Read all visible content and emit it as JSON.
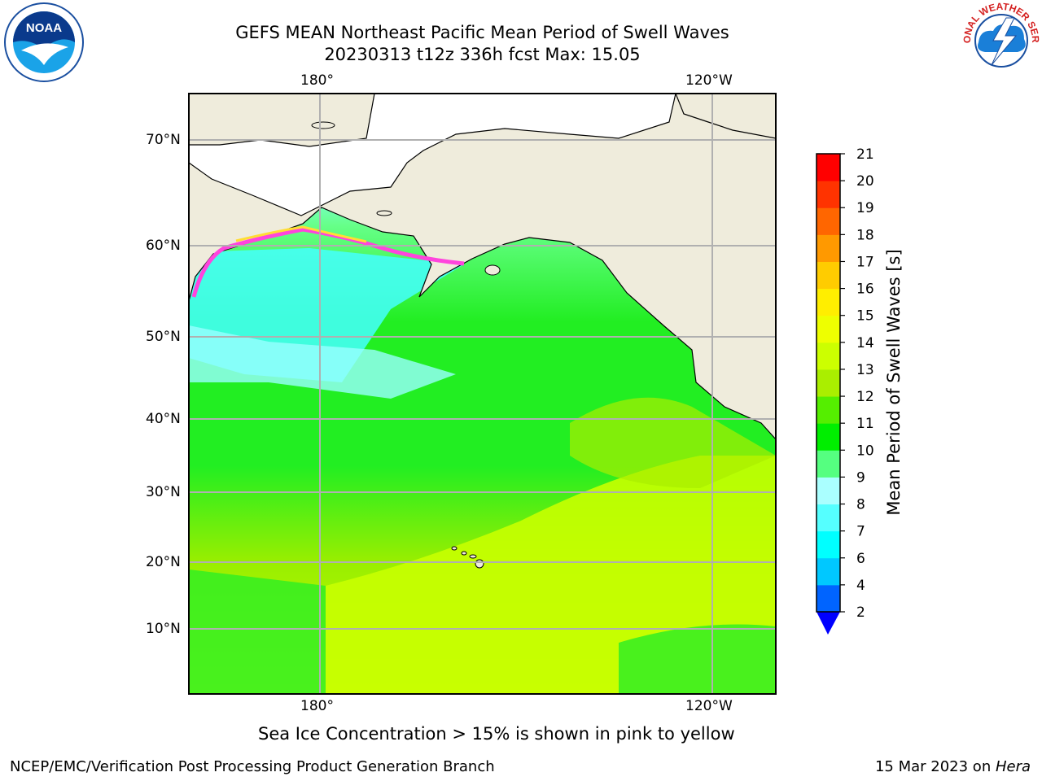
{
  "header": {
    "title_line1": "GEFS MEAN Northeast Pacific Mean Period of Swell Waves",
    "title_line2": "20230313 t12z 336h fcst   Max: 15.05"
  },
  "logos": {
    "left": "noaa-logo",
    "right": "national-weather-service-logo",
    "left_text": "NOAA",
    "right_text": "NATIONAL WEATHER SERVICE"
  },
  "map": {
    "top_lon_labels": [
      "180°",
      "120°W"
    ],
    "bottom_lon_labels": [
      "180°",
      "120°W"
    ],
    "lat_labels": [
      "70°N",
      "60°N",
      "50°N",
      "40°N",
      "30°N",
      "20°N",
      "10°N"
    ]
  },
  "colorbar": {
    "label": "Mean Period of Swell Waves [s]",
    "ticks": [
      "2",
      "4",
      "6",
      "7",
      "8",
      "9",
      "10",
      "11",
      "12",
      "13",
      "14",
      "15",
      "16",
      "17",
      "18",
      "19",
      "20",
      "21"
    ],
    "colors": [
      "#0000ff",
      "#0064ff",
      "#00c8ff",
      "#00ffff",
      "#55ffff",
      "#aaffff",
      "#55ff80",
      "#00ee00",
      "#55ee00",
      "#aaee00",
      "#ccff00",
      "#eeff00",
      "#ffee00",
      "#ffcc00",
      "#ff9900",
      "#ff6600",
      "#ff3300",
      "#ff0000"
    ],
    "extend_color": "#0000ff"
  },
  "notes": {
    "sea_ice": "Sea Ice Concentration > 15% is shown in pink to yellow"
  },
  "footer": {
    "left": "NCEP/EMC/Verification Post Processing Product Generation Branch",
    "right_date": "15 Mar 2023 on ",
    "right_host": "Hera"
  },
  "style": {
    "land": "#efecdc",
    "grid": "#b0b0b0",
    "ice_pink": "#ff44dd",
    "ice_yellow": "#ffdd33"
  }
}
